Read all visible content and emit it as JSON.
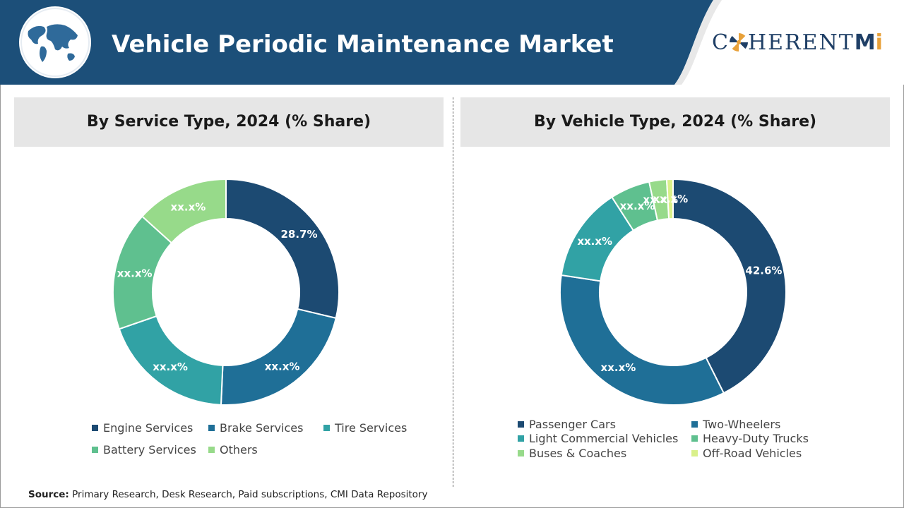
{
  "header": {
    "title": "Vehicle Periodic Maintenance Market",
    "logo_text": "C",
    "logo_text_rest": "HERENT",
    "logo_mi": "M",
    "logo_i": "i",
    "colors": {
      "band": "#1c4f79",
      "accent": "#2b6ea0",
      "logo": "#1f3f66"
    }
  },
  "source": {
    "label": "Source:",
    "text": " Primary Research, Desk Research, Paid subscriptions, CMI Data Repository"
  },
  "chart_data": [
    {
      "type": "pie",
      "title": "By Service Type, 2024 (% Share)",
      "donut": true,
      "categories": [
        "Engine Services",
        "Brake Services",
        "Tire Services",
        "Battery Services",
        "Others"
      ],
      "values": [
        28.7,
        22.0,
        19.0,
        17.0,
        13.3
      ],
      "labels": [
        "28.7%",
        "xx.x%",
        "xx.x%",
        "xx.x%",
        "xx.x%"
      ],
      "colors": [
        "#1c4a72",
        "#1f6f97",
        "#31a2a5",
        "#5fc08f",
        "#97da8a"
      ],
      "legend_position": "bottom"
    },
    {
      "type": "pie",
      "title": "By Vehicle Type, 2024 (% Share)",
      "donut": true,
      "categories": [
        "Passenger Cars",
        "Two-Wheelers",
        "Light Commercial Vehicles",
        "Heavy-Duty Trucks",
        "Buses & Coaches",
        "Off-Road Vehicles"
      ],
      "values": [
        42.6,
        34.8,
        13.5,
        5.7,
        2.5,
        0.9
      ],
      "labels": [
        "42.6%",
        "xx.x%",
        "xx.x%",
        "xx.x%",
        "xx.x%",
        "xx.x%"
      ],
      "colors": [
        "#1c4a72",
        "#1f6f97",
        "#31a2a5",
        "#5fc08f",
        "#97da8a",
        "#d9f08a"
      ],
      "legend_position": "bottom"
    }
  ]
}
